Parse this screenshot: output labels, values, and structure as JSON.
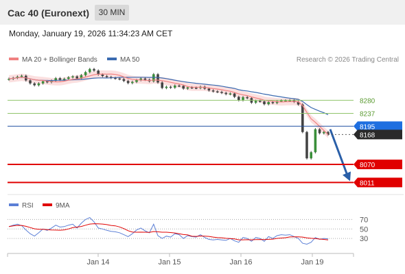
{
  "header": {
    "title": "Cac 40 (Euronext)",
    "timeframe": "30 MIN"
  },
  "datetime": "Monday, January 19, 2026 11:34:23 AM CET",
  "legend": {
    "ma20_label": "MA 20 + Bollinger Bands",
    "ma50_label": "MA 50",
    "credit": "Research © 2026 Trading Central"
  },
  "rsi_legend": {
    "rsi_label": "RSI",
    "ma_label": "9MA"
  },
  "colors": {
    "ma20": "#f08080",
    "ma50": "#3a6ab0",
    "band": "#f7c6c6",
    "support": "#e00000",
    "resistance": "#8fc46a",
    "pivot": "#1f4fa0",
    "price_badge": "#2a2a2a",
    "rsi": "#5b7fd6",
    "rsi_ma": "#e00000",
    "arrow": "#2a5fa8"
  },
  "chart_data": [
    {
      "type": "candlestick",
      "title": "Cac 40 (Euronext)",
      "timeframe": "30 MIN",
      "xlabel": "",
      "ylabel": "",
      "x_ticks": [
        "Jan 14",
        "Jan 15",
        "Jan 16",
        "Jan 19"
      ],
      "levels": [
        {
          "value": 8280,
          "label": "8280",
          "kind": "resistance"
        },
        {
          "value": 8237,
          "label": "8237",
          "kind": "resistance"
        },
        {
          "value": 8195,
          "label": "8195",
          "kind": "pivot"
        },
        {
          "value": 8168,
          "label": "8168",
          "kind": "last_price"
        },
        {
          "value": 8070,
          "label": "8070",
          "kind": "support"
        },
        {
          "value": 8011,
          "label": "8011",
          "kind": "support"
        }
      ],
      "ylim": [
        7985,
        8395
      ],
      "close_path": [
        8350,
        8353,
        8357,
        8360,
        8345,
        8335,
        8329,
        8335,
        8342,
        8339,
        8344,
        8352,
        8347,
        8350,
        8355,
        8358,
        8351,
        8362,
        8372,
        8382,
        8377,
        8364,
        8359,
        8356,
        8353,
        8351,
        8349,
        8343,
        8336,
        8340,
        8346,
        8351,
        8347,
        8342,
        8365,
        8338,
        8320,
        8324,
        8321,
        8328,
        8327,
        8318,
        8322,
        8321,
        8320,
        8324,
        8318,
        8312,
        8309,
        8307,
        8304,
        8300,
        8302,
        8291,
        8280,
        8290,
        8287,
        8272,
        8278,
        8276,
        8267,
        8274,
        8271,
        8277,
        8279,
        8279,
        8280,
        8275,
        8266,
        8176,
        8090,
        8110,
        8185,
        8172,
        8176,
        8168
      ],
      "arrow": {
        "from": 8185,
        "to": 8011
      },
      "series": [
        {
          "name": "MA 20 + Bollinger Bands"
        },
        {
          "name": "MA 50"
        }
      ]
    },
    {
      "type": "line",
      "title": "RSI",
      "ylim": [
        0,
        100
      ],
      "y_ticks": [
        70,
        50,
        30
      ],
      "rsi_values": [
        55,
        58,
        60,
        57,
        48,
        40,
        35,
        42,
        50,
        47,
        52,
        58,
        54,
        55,
        58,
        60,
        52,
        62,
        70,
        74,
        65,
        52,
        50,
        47,
        45,
        44,
        42,
        38,
        34,
        40,
        48,
        52,
        46,
        42,
        60,
        36,
        30,
        35,
        33,
        40,
        38,
        30,
        36,
        34,
        33,
        38,
        32,
        28,
        27,
        28,
        27,
        26,
        30,
        25,
        22,
        32,
        30,
        24,
        32,
        30,
        24,
        34,
        30,
        36,
        38,
        37,
        38,
        34,
        30,
        20,
        18,
        22,
        32,
        28,
        30,
        29
      ],
      "series": [
        {
          "name": "RSI"
        },
        {
          "name": "9MA"
        }
      ]
    }
  ]
}
